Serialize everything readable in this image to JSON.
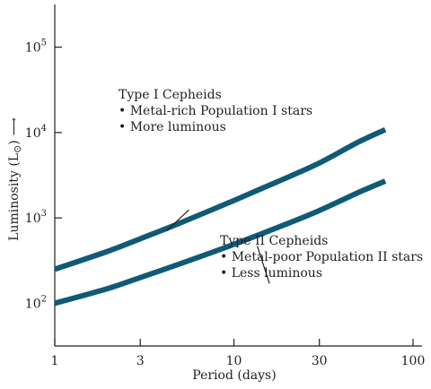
{
  "chart_data": {
    "type": "line",
    "x_scale": "log",
    "y_scale": "log",
    "xlim": [
      1,
      100
    ],
    "ylim": [
      31.6,
      316228
    ],
    "xlabel": "Period (days)",
    "ylabel": "Luminosity (L",
    "ylabel_symbol": "⊙",
    "ylabel_close": ")",
    "ylabel_arrow": "⟶",
    "x_ticks": [
      {
        "value": 1,
        "label": "1"
      },
      {
        "value": 3,
        "label": "3"
      },
      {
        "value": 10,
        "label": "10"
      },
      {
        "value": 30,
        "label": "30"
      },
      {
        "value": 100,
        "label": "100"
      }
    ],
    "y_ticks": [
      {
        "value": 100,
        "base": "10",
        "exp": "2"
      },
      {
        "value": 1000,
        "base": "10",
        "exp": "3"
      },
      {
        "value": 10000,
        "base": "10",
        "exp": "4"
      },
      {
        "value": 100000,
        "base": "10",
        "exp": "5"
      }
    ],
    "series": [
      {
        "color": "#0f5b76",
        "x": [
          1,
          2,
          3,
          5,
          10,
          20,
          30,
          50,
          70
        ],
        "y": [
          250,
          410,
          570,
          870,
          1600,
          3000,
          4400,
          7800,
          10800
        ]
      },
      {
        "color": "#0f5b76",
        "x": [
          1,
          2,
          3,
          5,
          10,
          20,
          30,
          50,
          70
        ],
        "y": [
          100,
          150,
          200,
          290,
          490,
          860,
          1220,
          2000,
          2700
        ]
      }
    ],
    "annotations": [
      {
        "lines": [
          "Type I Cepheids",
          "• Metal-rich Population I stars",
          "• More luminous"
        ],
        "pointer_from": [
          5.6,
          1240
        ],
        "pointer_to": [
          4.2,
          700
        ]
      },
      {
        "lines": [
          "Type II Cepheids",
          "• Metal-poor Population II stars",
          "• Less luminous"
        ],
        "pointer_from": [
          13.5,
          470
        ],
        "pointer_to": [
          15.8,
          170
        ]
      }
    ]
  }
}
